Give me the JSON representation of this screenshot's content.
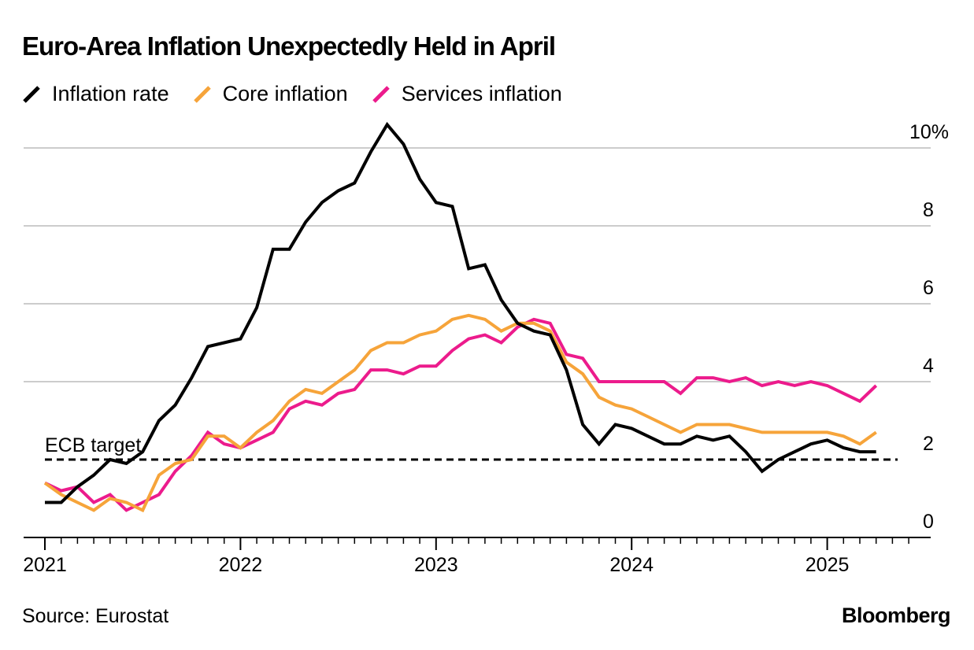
{
  "header": {
    "title": "Euro-Area Inflation Unexpectedly Held in April"
  },
  "footer": {
    "source": "Source: Eurostat",
    "brand": "Bloomberg"
  },
  "colors": {
    "inflation": "#000000",
    "core": "#f6a43a",
    "services": "#ec1b8c",
    "grid": "#cccccc"
  },
  "chart_data": {
    "type": "line",
    "title": "Euro-Area Inflation Unexpectedly Held in April",
    "x_ticks": [
      "2021",
      "2022",
      "2023",
      "2024",
      "2025"
    ],
    "x_range": [
      "2021-01",
      "2025-04"
    ],
    "y_ticks": [
      "10%",
      "8",
      "6",
      "4",
      "2",
      "0"
    ],
    "ylim": [
      -0.3,
      10.5
    ],
    "grid": true,
    "legend_placement": "top-left",
    "reference_line": {
      "label": "ECB target",
      "value": 2.0,
      "style": "dashed"
    },
    "dates": [
      "2021-01",
      "2021-02",
      "2021-03",
      "2021-04",
      "2021-05",
      "2021-06",
      "2021-07",
      "2021-08",
      "2021-09",
      "2021-10",
      "2021-11",
      "2021-12",
      "2022-01",
      "2022-02",
      "2022-03",
      "2022-04",
      "2022-05",
      "2022-06",
      "2022-07",
      "2022-08",
      "2022-09",
      "2022-10",
      "2022-11",
      "2022-12",
      "2023-01",
      "2023-02",
      "2023-03",
      "2023-04",
      "2023-05",
      "2023-06",
      "2023-07",
      "2023-08",
      "2023-09",
      "2023-10",
      "2023-11",
      "2023-12",
      "2024-01",
      "2024-02",
      "2024-03",
      "2024-04",
      "2024-05",
      "2024-06",
      "2024-07",
      "2024-08",
      "2024-09",
      "2024-10",
      "2024-11",
      "2024-12",
      "2025-01",
      "2025-02",
      "2025-03",
      "2025-04"
    ],
    "series": [
      {
        "name": "Inflation rate",
        "key": "inflation",
        "values": [
          0.9,
          0.9,
          1.3,
          1.6,
          2.0,
          1.9,
          2.2,
          3.0,
          3.4,
          4.1,
          4.9,
          5.0,
          5.1,
          5.9,
          7.4,
          7.4,
          8.1,
          8.6,
          8.9,
          9.1,
          9.9,
          10.6,
          10.1,
          9.2,
          8.6,
          8.5,
          6.9,
          7.0,
          6.1,
          5.5,
          5.3,
          5.2,
          4.3,
          2.9,
          2.4,
          2.9,
          2.8,
          2.6,
          2.4,
          2.4,
          2.6,
          2.5,
          2.6,
          2.2,
          1.7,
          2.0,
          2.2,
          2.4,
          2.5,
          2.3,
          2.2,
          2.2
        ]
      },
      {
        "name": "Core inflation",
        "key": "core",
        "values": [
          1.4,
          1.1,
          0.9,
          0.7,
          1.0,
          0.9,
          0.7,
          1.6,
          1.9,
          2.0,
          2.6,
          2.6,
          2.3,
          2.7,
          3.0,
          3.5,
          3.8,
          3.7,
          4.0,
          4.3,
          4.8,
          5.0,
          5.0,
          5.2,
          5.3,
          5.6,
          5.7,
          5.6,
          5.3,
          5.5,
          5.5,
          5.3,
          4.5,
          4.2,
          3.6,
          3.4,
          3.3,
          3.1,
          2.9,
          2.7,
          2.9,
          2.9,
          2.9,
          2.8,
          2.7,
          2.7,
          2.7,
          2.7,
          2.7,
          2.6,
          2.4,
          2.7
        ]
      },
      {
        "name": "Services inflation",
        "key": "services",
        "values": [
          1.4,
          1.2,
          1.3,
          0.9,
          1.1,
          0.7,
          0.9,
          1.1,
          1.7,
          2.1,
          2.7,
          2.4,
          2.3,
          2.5,
          2.7,
          3.3,
          3.5,
          3.4,
          3.7,
          3.8,
          4.3,
          4.3,
          4.2,
          4.4,
          4.4,
          4.8,
          5.1,
          5.2,
          5.0,
          5.4,
          5.6,
          5.5,
          4.7,
          4.6,
          4.0,
          4.0,
          4.0,
          4.0,
          4.0,
          3.7,
          4.1,
          4.1,
          4.0,
          4.1,
          3.9,
          4.0,
          3.9,
          4.0,
          3.9,
          3.7,
          3.5,
          3.9
        ]
      }
    ]
  }
}
